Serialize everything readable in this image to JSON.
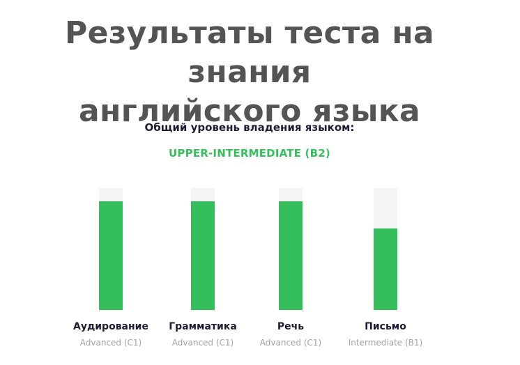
{
  "title": {
    "line1": "Результаты теста на знания",
    "line2": "английского языка"
  },
  "overall": {
    "label": "Общий уровень владения языком:",
    "value": "UPPER-INTERMEDIATE (B2)"
  },
  "colors": {
    "accent": "#35be5c",
    "track": "#f4f4f4",
    "title": "#545454",
    "label": "#1d1d33",
    "muted": "#a3a3a3"
  },
  "skills": [
    {
      "name": "Аудирование",
      "level": "Advanced (C1)",
      "fill": 0.89
    },
    {
      "name": "Грамматика",
      "level": "Advanced (C1)",
      "fill": 0.89
    },
    {
      "name": "Речь",
      "level": "Advanced (C1)",
      "fill": 0.89
    },
    {
      "name": "Письмо",
      "level": "Intermediate (B1)",
      "fill": 0.67
    }
  ]
}
